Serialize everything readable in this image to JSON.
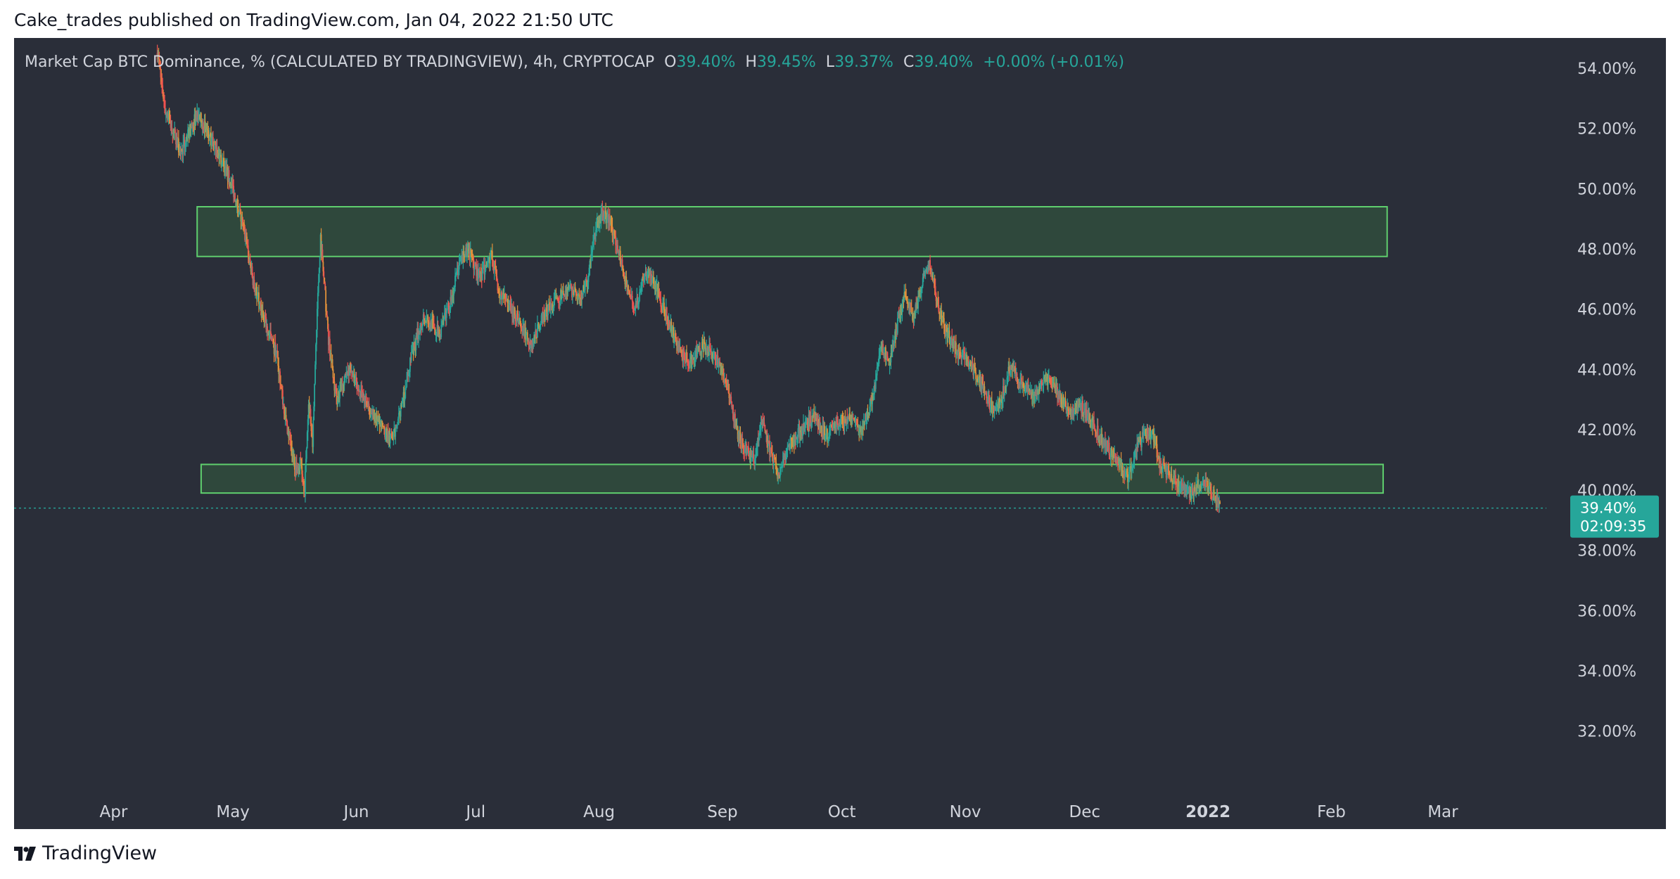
{
  "header": {
    "published": "Cake_trades published on TradingView.com, Jan 04, 2022 21:50 UTC"
  },
  "legend": {
    "symbol": "Market Cap BTC Dominance, % (CALCULATED BY TRADINGVIEW), 4h, CRYPTOCAP",
    "open_label": "O",
    "open_value": "39.40%",
    "high_label": "H",
    "high_value": "39.45%",
    "low_label": "L",
    "low_value": "39.37%",
    "close_label": "C",
    "close_value": "39.40%",
    "change": "+0.00% (+0.01%)"
  },
  "price_tag": {
    "price": "39.40%",
    "countdown": "02:09:35"
  },
  "footer": {
    "brand": "TradingView"
  },
  "colors": {
    "background": "#2a2e39",
    "up": "#26a69a",
    "down": "#ef5350",
    "candle_orange": "#e0913a",
    "zone_fill": "#2f4a3c",
    "zone_stroke": "#5fcf6e",
    "axis_text": "#d1d4dc",
    "price_line": "#26a69a"
  },
  "chart_data": {
    "type": "line",
    "title": "Market Cap BTC Dominance, % (CALCULATED BY TRADINGVIEW), 4h, CRYPTOCAP",
    "ylim": [
      30.5,
      55.0
    ],
    "y_ticks": [
      "54.00%",
      "52.00%",
      "50.00%",
      "48.00%",
      "46.00%",
      "44.00%",
      "42.00%",
      "40.00%",
      "38.00%",
      "36.00%",
      "34.00%",
      "32.00%"
    ],
    "y_tick_values": [
      54,
      52,
      50,
      48,
      46,
      44,
      42,
      40,
      38,
      36,
      34,
      32
    ],
    "x_ticks": [
      {
        "label": "Apr",
        "date": "2021-04-01"
      },
      {
        "label": "May",
        "date": "2021-05-01"
      },
      {
        "label": "Jun",
        "date": "2021-06-01"
      },
      {
        "label": "Jul",
        "date": "2021-07-01"
      },
      {
        "label": "Aug",
        "date": "2021-08-01"
      },
      {
        "label": "Sep",
        "date": "2021-09-01"
      },
      {
        "label": "Oct",
        "date": "2021-10-01"
      },
      {
        "label": "Nov",
        "date": "2021-11-01"
      },
      {
        "label": "Dec",
        "date": "2021-12-01"
      },
      {
        "label": "2022",
        "date": "2022-01-01",
        "bold": true
      },
      {
        "label": "Feb",
        "date": "2022-02-01"
      },
      {
        "label": "Mar",
        "date": "2022-03-01"
      }
    ],
    "xlim": [
      "2021-03-07",
      "2022-03-27"
    ],
    "series": [
      {
        "values": [
          {
            "x": "2021-04-12",
            "y": 54.5
          },
          {
            "x": "2021-04-14",
            "y": 52.6
          },
          {
            "x": "2021-04-18",
            "y": 51.2
          },
          {
            "x": "2021-04-22",
            "y": 52.5
          },
          {
            "x": "2021-04-26",
            "y": 51.5
          },
          {
            "x": "2021-04-29",
            "y": 50.7
          },
          {
            "x": "2021-05-01",
            "y": 50.0
          },
          {
            "x": "2021-05-04",
            "y": 48.5
          },
          {
            "x": "2021-05-06",
            "y": 47.0
          },
          {
            "x": "2021-05-08",
            "y": 46.0
          },
          {
            "x": "2021-05-10",
            "y": 45.2
          },
          {
            "x": "2021-05-12",
            "y": 44.5
          },
          {
            "x": "2021-05-14",
            "y": 42.5
          },
          {
            "x": "2021-05-16",
            "y": 41.2
          },
          {
            "x": "2021-05-17",
            "y": 40.6
          },
          {
            "x": "2021-05-18",
            "y": 41.0
          },
          {
            "x": "2021-05-19",
            "y": 40.0
          },
          {
            "x": "2021-05-20",
            "y": 43.0
          },
          {
            "x": "2021-05-21",
            "y": 41.5
          },
          {
            "x": "2021-05-22",
            "y": 45.5
          },
          {
            "x": "2021-05-23",
            "y": 48.4
          },
          {
            "x": "2021-05-25",
            "y": 45.0
          },
          {
            "x": "2021-05-27",
            "y": 43.0
          },
          {
            "x": "2021-05-30",
            "y": 44.0
          },
          {
            "x": "2021-06-02",
            "y": 43.2
          },
          {
            "x": "2021-06-05",
            "y": 42.5
          },
          {
            "x": "2021-06-08",
            "y": 42.0
          },
          {
            "x": "2021-06-10",
            "y": 41.6
          },
          {
            "x": "2021-06-12",
            "y": 42.5
          },
          {
            "x": "2021-06-15",
            "y": 44.5
          },
          {
            "x": "2021-06-18",
            "y": 45.8
          },
          {
            "x": "2021-06-22",
            "y": 45.2
          },
          {
            "x": "2021-06-25",
            "y": 46.4
          },
          {
            "x": "2021-06-27",
            "y": 47.6
          },
          {
            "x": "2021-06-29",
            "y": 48.0
          },
          {
            "x": "2021-07-02",
            "y": 47.0
          },
          {
            "x": "2021-07-05",
            "y": 47.8
          },
          {
            "x": "2021-07-07",
            "y": 46.5
          },
          {
            "x": "2021-07-10",
            "y": 46.0
          },
          {
            "x": "2021-07-13",
            "y": 45.3
          },
          {
            "x": "2021-07-15",
            "y": 44.8
          },
          {
            "x": "2021-07-18",
            "y": 45.8
          },
          {
            "x": "2021-07-21",
            "y": 46.2
          },
          {
            "x": "2021-07-24",
            "y": 46.7
          },
          {
            "x": "2021-07-27",
            "y": 46.4
          },
          {
            "x": "2021-07-29",
            "y": 46.9
          },
          {
            "x": "2021-07-31",
            "y": 48.6
          },
          {
            "x": "2021-08-02",
            "y": 49.2
          },
          {
            "x": "2021-08-04",
            "y": 48.8
          },
          {
            "x": "2021-08-06",
            "y": 47.8
          },
          {
            "x": "2021-08-08",
            "y": 46.8
          },
          {
            "x": "2021-08-10",
            "y": 46.0
          },
          {
            "x": "2021-08-13",
            "y": 47.3
          },
          {
            "x": "2021-08-15",
            "y": 46.8
          },
          {
            "x": "2021-08-18",
            "y": 45.8
          },
          {
            "x": "2021-08-21",
            "y": 44.6
          },
          {
            "x": "2021-08-24",
            "y": 44.2
          },
          {
            "x": "2021-08-27",
            "y": 44.8
          },
          {
            "x": "2021-08-30",
            "y": 44.5
          },
          {
            "x": "2021-09-02",
            "y": 43.5
          },
          {
            "x": "2021-09-05",
            "y": 41.8
          },
          {
            "x": "2021-09-07",
            "y": 41.3
          },
          {
            "x": "2021-09-09",
            "y": 41.0
          },
          {
            "x": "2021-09-11",
            "y": 42.5
          },
          {
            "x": "2021-09-13",
            "y": 41.2
          },
          {
            "x": "2021-09-15",
            "y": 40.5
          },
          {
            "x": "2021-09-18",
            "y": 41.5
          },
          {
            "x": "2021-09-21",
            "y": 42.0
          },
          {
            "x": "2021-09-24",
            "y": 42.5
          },
          {
            "x": "2021-09-27",
            "y": 41.8
          },
          {
            "x": "2021-09-30",
            "y": 42.2
          },
          {
            "x": "2021-10-03",
            "y": 42.4
          },
          {
            "x": "2021-10-06",
            "y": 42.0
          },
          {
            "x": "2021-10-09",
            "y": 43.2
          },
          {
            "x": "2021-10-11",
            "y": 44.8
          },
          {
            "x": "2021-10-13",
            "y": 44.2
          },
          {
            "x": "2021-10-15",
            "y": 45.5
          },
          {
            "x": "2021-10-17",
            "y": 46.5
          },
          {
            "x": "2021-10-19",
            "y": 45.7
          },
          {
            "x": "2021-10-21",
            "y": 46.8
          },
          {
            "x": "2021-10-23",
            "y": 47.6
          },
          {
            "x": "2021-10-25",
            "y": 46.2
          },
          {
            "x": "2021-10-27",
            "y": 45.3
          },
          {
            "x": "2021-10-30",
            "y": 44.6
          },
          {
            "x": "2021-11-02",
            "y": 44.2
          },
          {
            "x": "2021-11-05",
            "y": 43.5
          },
          {
            "x": "2021-11-08",
            "y": 42.6
          },
          {
            "x": "2021-11-10",
            "y": 43.0
          },
          {
            "x": "2021-11-12",
            "y": 44.0
          },
          {
            "x": "2021-11-15",
            "y": 43.6
          },
          {
            "x": "2021-11-18",
            "y": 43.0
          },
          {
            "x": "2021-11-21",
            "y": 43.8
          },
          {
            "x": "2021-11-24",
            "y": 43.3
          },
          {
            "x": "2021-11-27",
            "y": 42.6
          },
          {
            "x": "2021-11-30",
            "y": 42.8
          },
          {
            "x": "2021-12-02",
            "y": 42.4
          },
          {
            "x": "2021-12-04",
            "y": 42.0
          },
          {
            "x": "2021-12-06",
            "y": 41.5
          },
          {
            "x": "2021-12-08",
            "y": 41.2
          },
          {
            "x": "2021-12-10",
            "y": 40.8
          },
          {
            "x": "2021-12-12",
            "y": 40.4
          },
          {
            "x": "2021-12-14",
            "y": 41.4
          },
          {
            "x": "2021-12-16",
            "y": 41.8
          },
          {
            "x": "2021-12-18",
            "y": 41.9
          },
          {
            "x": "2021-12-20",
            "y": 40.8
          },
          {
            "x": "2021-12-23",
            "y": 40.4
          },
          {
            "x": "2021-12-26",
            "y": 40.1
          },
          {
            "x": "2021-12-28",
            "y": 39.9
          },
          {
            "x": "2021-12-30",
            "y": 40.3
          },
          {
            "x": "2022-01-01",
            "y": 40.1
          },
          {
            "x": "2022-01-03",
            "y": 39.7
          },
          {
            "x": "2022-01-04",
            "y": 39.4
          }
        ]
      }
    ],
    "last_value": 39.4,
    "annotations": [
      {
        "type": "rectangle",
        "x0": "2021-04-22",
        "x1": "2022-02-15",
        "y0": 47.75,
        "y1": 49.4
      },
      {
        "type": "rectangle",
        "x0": "2021-04-23",
        "x1": "2022-02-14",
        "y0": 39.9,
        "y1": 40.85
      }
    ],
    "grid": false
  }
}
